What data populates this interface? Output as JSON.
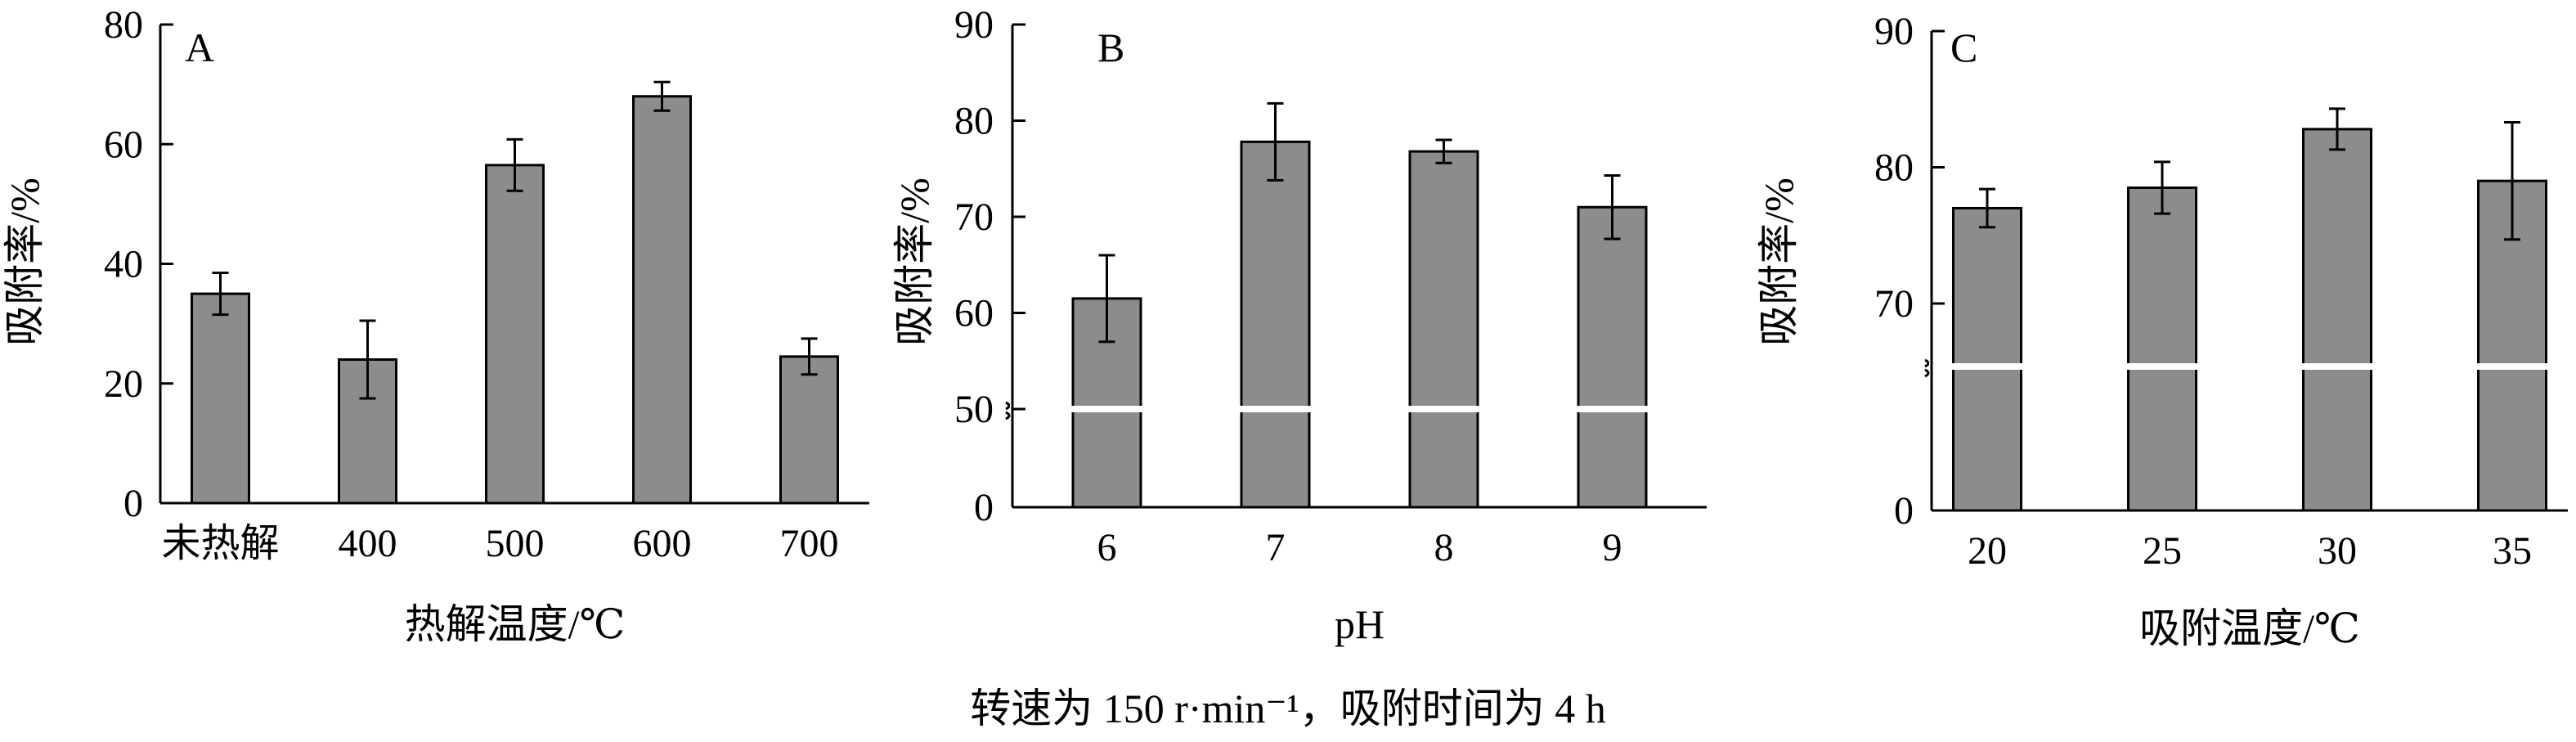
{
  "caption": "转速为 150 r·min⁻¹，吸附时间为 4 h",
  "colors": {
    "bar": "#8c8c8c",
    "axis": "#000000",
    "break": "#ffffff"
  },
  "chart_data": [
    {
      "panel": "A",
      "type": "bar",
      "xlabel": "热解温度/℃",
      "ylabel": "吸附率/%",
      "categories": [
        "未热解",
        "400",
        "500",
        "600",
        "700"
      ],
      "values": [
        35,
        24,
        56.5,
        68,
        24.5
      ],
      "errors": [
        3.5,
        6.5,
        4.3,
        2.4,
        3
      ],
      "ylim": [
        0,
        80
      ],
      "yticks": [
        0,
        20,
        40,
        60,
        80
      ],
      "axis_break": null
    },
    {
      "panel": "B",
      "type": "bar",
      "xlabel": "pH",
      "ylabel": "吸附率/%",
      "categories": [
        "6",
        "7",
        "8",
        "9"
      ],
      "values": [
        61.5,
        77.8,
        76.8,
        71
      ],
      "errors": [
        4.5,
        4,
        1.2,
        3.3
      ],
      "ylim": [
        0,
        90
      ],
      "yticks": [
        0,
        50,
        60,
        70,
        80,
        90
      ],
      "axis_break": [
        0,
        50
      ]
    },
    {
      "panel": "C",
      "type": "bar",
      "xlabel": "吸附温度/℃",
      "ylabel": "吸附率/%",
      "categories": [
        "20",
        "25",
        "30",
        "35"
      ],
      "values": [
        77,
        78.5,
        82.8,
        79
      ],
      "errors": [
        1.4,
        1.9,
        1.5,
        4.3
      ],
      "ylim": [
        0,
        90
      ],
      "yticks": [
        0,
        70,
        80,
        90
      ],
      "axis_break": [
        0,
        65
      ]
    }
  ]
}
